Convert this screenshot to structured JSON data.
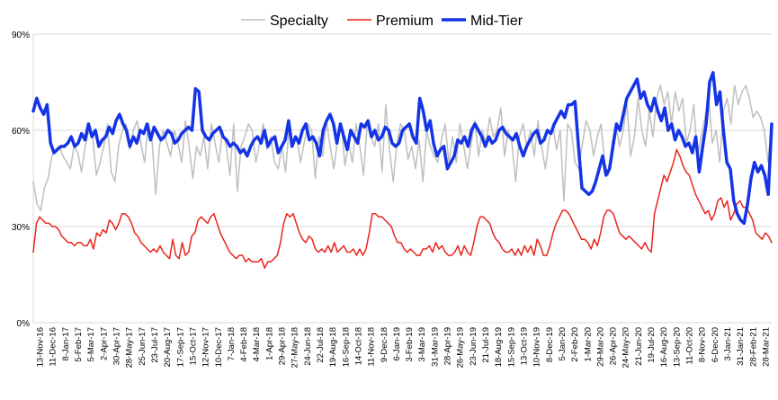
{
  "chart_data": {
    "type": "line",
    "title": "",
    "xlabel": "",
    "ylabel": "",
    "ylim": [
      0,
      90
    ],
    "y_ticks": [
      "0%",
      "30%",
      "60%",
      "90%"
    ],
    "y_tick_values": [
      0,
      30,
      60,
      90
    ],
    "x_tick_labels": [
      "13-Nov-16",
      "11-Dec-16",
      "8-Jan-17",
      "5-Feb-17",
      "5-Mar-17",
      "2-Apr-17",
      "30-Apr-17",
      "28-May-17",
      "25-Jun-17",
      "23-Jul-17",
      "20-Aug-17",
      "17-Sep-17",
      "15-Oct-17",
      "12-Nov-17",
      "10-Dec-17",
      "7-Jan-18",
      "4-Feb-18",
      "4-Mar-18",
      "1-Apr-18",
      "29-Apr-18",
      "27-May-18",
      "24-Jun-18",
      "22-Jul-18",
      "19-Aug-18",
      "16-Sep-18",
      "14-Oct-18",
      "11-Nov-18",
      "9-Dec-18",
      "6-Jan-19",
      "3-Feb-19",
      "3-Mar-19",
      "31-Mar-19",
      "28-Apr-19",
      "26-May-19",
      "23-Jun-19",
      "21-Jul-19",
      "18-Aug-19",
      "15-Sep-19",
      "13-Oct-19",
      "10-Nov-19",
      "8-Dec-19",
      "5-Jan-20",
      "2-Feb-20",
      "1-Mar-20",
      "29-Mar-20",
      "26-Apr-20",
      "24-May-20",
      "21-Jun-20",
      "19-Jul-20",
      "16-Aug-20",
      "13-Sep-20",
      "11-Oct-20",
      "8-Nov-20",
      "6-Dec-20",
      "3-Jan-21",
      "31-Jan-21",
      "28-Feb-21",
      "28-Mar-21"
    ],
    "grid": true,
    "legend_position": "top-center",
    "series": [
      {
        "name": "Specialty",
        "color": "#bfbfbf",
        "stroke": "thin",
        "values": [
          44,
          37,
          35,
          42,
          45,
          52,
          54,
          55,
          52,
          50,
          48,
          55,
          53,
          47,
          55,
          60,
          58,
          46,
          50,
          55,
          62,
          47,
          44,
          55,
          60,
          62,
          54,
          60,
          63,
          56,
          50,
          62,
          57,
          40,
          55,
          60,
          56,
          52,
          60,
          56,
          50,
          63,
          55,
          45,
          55,
          52,
          58,
          48,
          62,
          56,
          50,
          60,
          55,
          46,
          62,
          41,
          55,
          58,
          62,
          60,
          50,
          56,
          62,
          54,
          58,
          50,
          48,
          55,
          47,
          62,
          55,
          58,
          50,
          56,
          62,
          60,
          45,
          58,
          52,
          63,
          55,
          48,
          57,
          62,
          49,
          56,
          50,
          62,
          55,
          46,
          62,
          58,
          55,
          62,
          47,
          68,
          54,
          44,
          56,
          62,
          60,
          51,
          55,
          48,
          57,
          44,
          60,
          55,
          52,
          50,
          57,
          62,
          50,
          58,
          50,
          62,
          55,
          48,
          56,
          63,
          52,
          60,
          56,
          64,
          58,
          60,
          67,
          52,
          60,
          56,
          44,
          58,
          62,
          55,
          60,
          52,
          63,
          55,
          48,
          57,
          62,
          54,
          60,
          38,
          62,
          60,
          50,
          48,
          56,
          63,
          60,
          52,
          58,
          62,
          50,
          46,
          56,
          62,
          55,
          60,
          68,
          52,
          58,
          70,
          60,
          55,
          66,
          58,
          70,
          74,
          68,
          72,
          62,
          72,
          66,
          70,
          56,
          60,
          68,
          52,
          58,
          64,
          70,
          56,
          60,
          50,
          66,
          70,
          62,
          74,
          68,
          72,
          74,
          70,
          64,
          66,
          64,
          60,
          50,
          62
        ]
      },
      {
        "name": "Premium",
        "color": "#e8251c",
        "stroke": "medium",
        "values": [
          22,
          31,
          33,
          32,
          31,
          31,
          30,
          30,
          29,
          27,
          26,
          25,
          25,
          24,
          25,
          25,
          24,
          24,
          26,
          23,
          28,
          27,
          29,
          28,
          32,
          31,
          29,
          31,
          34,
          34,
          33,
          31,
          28,
          27,
          25,
          24,
          23,
          22,
          23,
          22,
          24,
          22,
          21,
          20,
          26,
          21,
          20,
          25,
          21,
          22,
          27,
          28,
          32,
          33,
          32,
          31,
          33,
          34,
          31,
          28,
          26,
          24,
          22,
          21,
          20,
          21,
          21,
          19,
          20,
          19,
          19,
          19,
          20,
          17,
          19,
          19,
          20,
          21,
          25,
          31,
          34,
          33,
          34,
          31,
          28,
          26,
          25,
          27,
          26,
          23,
          22,
          23,
          22,
          24,
          22,
          25,
          22,
          23,
          24,
          22,
          22,
          23,
          21,
          23,
          21,
          23,
          28,
          34,
          34,
          33,
          33,
          32,
          31,
          30,
          27,
          25,
          25,
          23,
          22,
          23,
          22,
          21,
          21,
          23,
          23,
          24,
          22,
          25,
          23,
          24,
          22,
          21,
          21,
          22,
          24,
          21,
          24,
          22,
          21,
          25,
          30,
          33,
          33,
          32,
          31,
          28,
          26,
          25,
          23,
          22,
          22,
          23,
          21,
          23,
          21,
          24,
          22,
          24,
          21,
          26,
          24,
          21,
          21,
          24,
          28,
          31,
          33,
          35,
          35,
          34,
          32,
          30,
          28,
          26,
          26,
          25,
          23,
          26,
          24,
          28,
          33,
          35,
          35,
          34,
          31,
          28,
          27,
          26,
          27,
          26,
          25,
          24,
          23,
          25,
          23,
          22,
          34,
          38,
          42,
          46,
          44,
          47,
          50,
          54,
          52,
          49,
          47,
          46,
          43,
          40,
          38,
          36,
          34,
          35,
          32,
          34,
          38,
          39,
          36,
          38,
          32,
          34,
          37,
          38,
          36,
          36,
          34,
          32,
          28,
          27,
          26,
          28,
          27,
          25
        ]
      },
      {
        "name": "Mid-Tier",
        "color": "#1434e6",
        "stroke": "thick",
        "values": [
          66,
          70,
          67,
          65,
          68,
          56,
          53,
          54,
          55,
          55,
          56,
          58,
          55,
          56,
          59,
          57,
          62,
          58,
          60,
          55,
          57,
          58,
          61,
          59,
          63,
          65,
          62,
          60,
          55,
          58,
          56,
          60,
          59,
          62,
          57,
          61,
          59,
          57,
          58,
          60,
          59,
          56,
          57,
          59,
          60,
          61,
          60,
          73,
          72,
          60,
          58,
          57,
          59,
          60,
          61,
          58,
          57,
          55,
          56,
          55,
          53,
          54,
          52,
          55,
          57,
          58,
          56,
          60,
          55,
          57,
          58,
          53,
          55,
          57,
          63,
          55,
          58,
          56,
          60,
          62,
          57,
          58,
          56,
          52,
          60,
          63,
          65,
          62,
          56,
          62,
          58,
          54,
          60,
          58,
          56,
          62,
          61,
          63,
          58,
          60,
          57,
          58,
          61,
          60,
          56,
          55,
          56,
          60,
          61,
          62,
          58,
          56,
          70,
          66,
          60,
          63,
          56,
          52,
          54,
          55,
          48,
          50,
          52,
          57,
          56,
          58,
          55,
          60,
          62,
          60,
          58,
          55,
          58,
          56,
          57,
          60,
          61,
          59,
          58,
          57,
          59,
          55,
          52,
          55,
          57,
          59,
          60,
          56,
          57,
          60,
          59,
          62,
          64,
          66,
          64,
          68,
          68,
          69,
          55,
          42,
          41,
          40,
          41,
          44,
          48,
          52,
          46,
          48,
          55,
          62,
          60,
          65,
          70,
          72,
          74,
          76,
          70,
          72,
          68,
          66,
          70,
          66,
          63,
          67,
          60,
          62,
          57,
          60,
          58,
          55,
          56,
          53,
          58,
          47,
          55,
          62,
          75,
          78,
          68,
          72,
          60,
          50,
          48,
          38,
          34,
          32,
          31,
          37,
          45,
          50,
          47,
          49,
          46,
          40,
          62
        ]
      }
    ]
  }
}
